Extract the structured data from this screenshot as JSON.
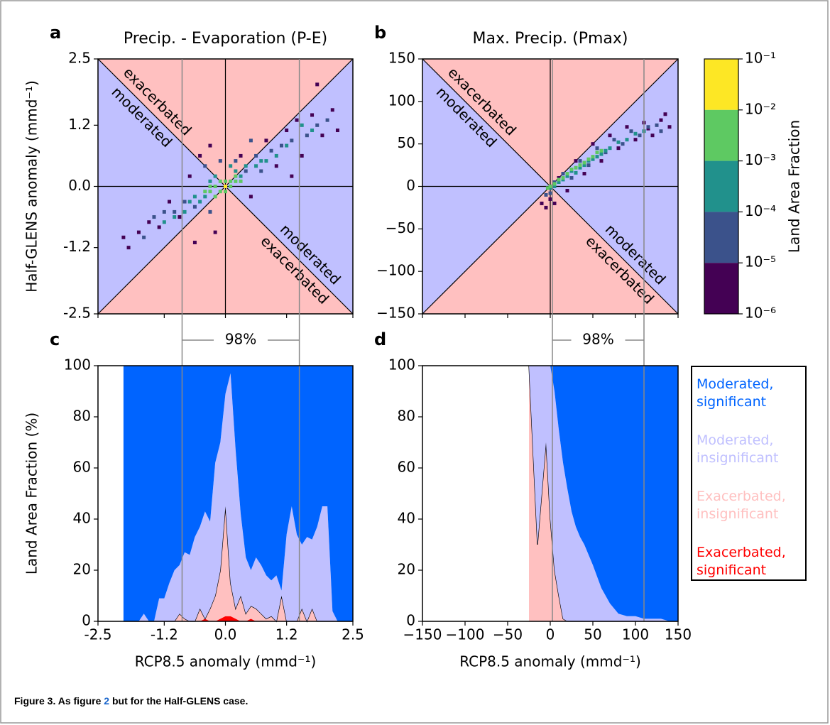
{
  "chart_data": [
    {
      "type": "scatter",
      "panel_label": "a",
      "title": "Precip. - Evaporation (P-E)",
      "ylabel": "Half-GLENS anomaly (mmd⁻¹)",
      "xlim": [
        -2.5,
        2.5
      ],
      "ylim": [
        -2.5,
        2.5
      ],
      "xticks": [
        -2.5,
        -1.2,
        0,
        1.2,
        2.5
      ],
      "xtick_labels": false,
      "yticks": [
        2.5,
        1.2,
        {
          "value": 0,
          "label": "0.0"
        },
        -1.2,
        -2.5
      ],
      "region_labels": [
        "exacerbated",
        "moderated",
        "moderated",
        "exacerbated"
      ],
      "series": [
        {
          "color": "#440154",
          "x": [
            -2.0,
            -1.9,
            -1.7,
            -1.5,
            -1.3,
            -1.1,
            -0.9,
            -0.7,
            -0.5,
            -0.3,
            -0.2,
            0.3,
            0.5,
            0.8,
            1.0,
            1.2,
            1.4,
            1.5,
            1.7,
            1.9,
            2.1,
            2.2,
            1.8,
            1.3,
            -0.6
          ],
          "y": [
            -1.0,
            -1.2,
            -0.9,
            -0.7,
            -0.8,
            -0.3,
            -0.6,
            0.2,
            0.6,
            0.8,
            -0.9,
            0.6,
            -0.2,
            0.9,
            0.4,
            1.1,
            1.3,
            0.6,
            1.4,
            1.0,
            1.5,
            1.1,
            2.0,
            0.2,
            -1.1
          ]
        },
        {
          "color": "#3b528b",
          "x": [
            -1.6,
            -1.4,
            -1.2,
            -1.0,
            -0.8,
            -0.6,
            -0.4,
            -0.3,
            0.2,
            0.4,
            0.6,
            0.7,
            0.9,
            1.1,
            1.3,
            1.6,
            1.8,
            2.0,
            -0.1,
            0.5
          ],
          "y": [
            -1.0,
            -0.6,
            -0.5,
            -0.5,
            -0.3,
            -0.4,
            0.4,
            -0.5,
            0.5,
            0.3,
            0.6,
            0.3,
            0.7,
            0.8,
            0.9,
            1.0,
            1.2,
            1.3,
            0.5,
            0.9
          ]
        },
        {
          "color": "#21918c",
          "x": [
            -1.2,
            -1.0,
            -0.8,
            -0.7,
            -0.5,
            -0.4,
            -0.3,
            -0.2,
            0.2,
            0.3,
            0.4,
            0.6,
            0.8,
            1.0,
            1.2,
            1.5,
            1.7,
            -0.6,
            0.1,
            0.7
          ],
          "y": [
            -0.7,
            -0.6,
            -0.5,
            -0.3,
            -0.3,
            -0.2,
            0.1,
            0.2,
            0.3,
            0.2,
            0.4,
            0.4,
            0.5,
            0.6,
            0.8,
            1.2,
            1.1,
            -0.2,
            0.4,
            0.5
          ]
        },
        {
          "color": "#5ec962",
          "x": [
            -0.4,
            -0.3,
            -0.2,
            -0.1,
            -0.1,
            0.0,
            0.1,
            0.1,
            0.2,
            0.2,
            0.3,
            -0.2,
            0.0,
            -0.3
          ],
          "y": [
            -0.1,
            -0.1,
            0.0,
            -0.1,
            0.1,
            0.1,
            0.1,
            0.0,
            0.1,
            0.2,
            0.1,
            -0.2,
            -0.1,
            0.0
          ]
        },
        {
          "color": "#fde725",
          "x": [
            0.0
          ],
          "y": [
            0.0
          ]
        }
      ]
    },
    {
      "type": "scatter",
      "panel_label": "b",
      "title": "Max. Precip. (Pmax)",
      "xlim": [
        -150,
        150
      ],
      "ylim": [
        -150,
        150
      ],
      "xticks": [
        -150,
        -100,
        -50,
        0,
        50,
        100,
        150
      ],
      "xtick_labels": false,
      "yticks": [
        150,
        100,
        50,
        0,
        {
          "value": -50,
          "label": "−50"
        },
        {
          "value": -100,
          "label": "−100"
        },
        {
          "value": -150,
          "label": "−150"
        }
      ],
      "region_labels": [
        "exacerbated",
        "moderated",
        "moderated",
        "exacerbated"
      ],
      "series": [
        {
          "color": "#440154",
          "x": [
            -10,
            -5,
            0,
            5,
            10,
            20,
            30,
            40,
            50,
            60,
            70,
            80,
            90,
            100,
            110,
            120,
            130,
            140,
            135,
            115
          ],
          "y": [
            -20,
            -25,
            -15,
            -20,
            10,
            -5,
            30,
            15,
            50,
            30,
            60,
            45,
            70,
            55,
            75,
            60,
            78,
            70,
            85,
            68
          ]
        },
        {
          "color": "#3b528b",
          "x": [
            -5,
            0,
            5,
            15,
            25,
            35,
            45,
            55,
            65,
            75,
            85,
            95,
            105,
            115,
            125,
            130
          ],
          "y": [
            -10,
            -8,
            5,
            15,
            10,
            30,
            25,
            45,
            40,
            55,
            50,
            65,
            60,
            70,
            72,
            65
          ]
        },
        {
          "color": "#21918c",
          "x": [
            0,
            5,
            10,
            15,
            20,
            25,
            30,
            35,
            40,
            45,
            50,
            55,
            60,
            65,
            70,
            80,
            90,
            100,
            110
          ],
          "y": [
            -2,
            0,
            5,
            8,
            12,
            18,
            16,
            22,
            25,
            30,
            32,
            35,
            38,
            42,
            45,
            52,
            55,
            62,
            65
          ]
        },
        {
          "color": "#5ec962",
          "x": [
            5,
            10,
            15,
            20,
            25,
            30,
            35,
            40,
            45,
            50,
            0,
            -3,
            55,
            60
          ],
          "y": [
            3,
            8,
            10,
            15,
            20,
            22,
            25,
            28,
            32,
            35,
            0,
            -2,
            40,
            42
          ]
        }
      ],
      "colorbar": {
        "label": "Land Area Fraction",
        "scale": "log",
        "lim": [
          1e-06,
          0.1
        ],
        "ticks": [
          {
            "value": 0.1,
            "label": "10⁻¹"
          },
          {
            "value": 0.01,
            "label": "10⁻²"
          },
          {
            "value": 0.001,
            "label": "10⁻³"
          },
          {
            "value": 0.0001,
            "label": "10⁻⁴"
          },
          {
            "value": 1e-05,
            "label": "10⁻⁵"
          },
          {
            "value": 1e-06,
            "label": "10⁻⁶"
          }
        ],
        "colors": [
          "#fde725",
          "#5ec962",
          "#21918c",
          "#3b528b",
          "#440154"
        ]
      }
    },
    {
      "type": "area",
      "panel_label": "c",
      "ylabel": "Land Area Fraction (%)",
      "xlabel": "RCP8.5 anomaly (mmd⁻¹)",
      "xlim": [
        -2.5,
        2.5
      ],
      "ylim": [
        0,
        100
      ],
      "xticks": [
        -2.5,
        -1.2,
        {
          "value": 0,
          "label": "0.0"
        },
        1.2,
        2.5
      ],
      "yticks": [
        0,
        20,
        40,
        60,
        80,
        100
      ],
      "percentile_x": [
        -0.85,
        1.45
      ],
      "percentile_label": "98%",
      "x": [
        -2.0,
        -1.9,
        -1.8,
        -1.7,
        -1.6,
        -1.5,
        -1.4,
        -1.3,
        -1.2,
        -1.1,
        -1.0,
        -0.9,
        -0.8,
        -0.7,
        -0.6,
        -0.5,
        -0.4,
        -0.3,
        -0.2,
        -0.1,
        0.0,
        0.1,
        0.2,
        0.3,
        0.4,
        0.5,
        0.6,
        0.7,
        0.8,
        0.9,
        1.0,
        1.1,
        1.2,
        1.3,
        1.4,
        1.5,
        1.6,
        1.7,
        1.8,
        1.9,
        2.0,
        2.1,
        2.2,
        2.3,
        2.4,
        2.5
      ],
      "series": [
        {
          "color": "#0064ff",
          "values": [
            100,
            100,
            100,
            100,
            97,
            100,
            100,
            91,
            91,
            85,
            80,
            78,
            73,
            74,
            67,
            63,
            57,
            61,
            38,
            30,
            11,
            3,
            33,
            58,
            75,
            80,
            75,
            78,
            82,
            84,
            82,
            88,
            66,
            55,
            66,
            70,
            67,
            68,
            63,
            55,
            55,
            96,
            100,
            100,
            100,
            100
          ]
        },
        {
          "color": "#c0c0ff",
          "values": [
            0,
            0,
            0,
            0,
            3,
            0,
            0,
            9,
            9,
            15,
            20,
            19,
            26,
            26,
            33,
            32,
            42,
            34,
            52,
            50,
            44,
            82,
            62,
            32,
            22,
            14,
            20,
            19,
            17,
            14,
            18,
            2,
            34,
            45,
            34,
            25,
            33,
            27,
            37,
            45,
            45,
            4,
            0,
            0,
            0,
            0
          ]
        },
        {
          "color": "#ffc0c0",
          "values": [
            0,
            0,
            0,
            0,
            0,
            0,
            0,
            0,
            0,
            0,
            0,
            3,
            1,
            0,
            0,
            5,
            0,
            5,
            10,
            19,
            43,
            13,
            4,
            10,
            3,
            5,
            5,
            3,
            1,
            2,
            0,
            10,
            0,
            0,
            0,
            5,
            0,
            5,
            0,
            0,
            0,
            0,
            0,
            0,
            0,
            0
          ]
        },
        {
          "color": "#ff0000",
          "values": [
            0,
            0,
            0,
            0,
            0,
            0,
            0,
            0,
            0,
            0,
            0,
            0,
            0,
            0,
            0,
            0,
            1,
            0,
            0,
            1,
            2,
            2,
            1,
            0,
            0,
            1,
            0,
            0,
            0,
            0,
            0,
            0,
            0,
            0,
            0,
            0,
            0,
            0,
            0,
            0,
            0,
            0,
            0,
            0,
            0,
            0
          ]
        }
      ]
    },
    {
      "type": "area",
      "panel_label": "d",
      "xlabel": "RCP8.5 anomaly (mmd⁻¹)",
      "xlim": [
        -150,
        150
      ],
      "ylim": [
        0,
        100
      ],
      "xticks": [
        {
          "value": -150,
          "label": "−150"
        },
        {
          "value": -100,
          "label": "−100"
        },
        {
          "value": -50,
          "label": "−50"
        },
        0,
        50,
        100,
        150
      ],
      "yticks": [
        0,
        20,
        40,
        60,
        80,
        100
      ],
      "percentile_x": [
        2.5,
        110
      ],
      "percentile_label": "98%",
      "x": [
        -25,
        -20,
        -15,
        -10,
        -5,
        0,
        5,
        10,
        15,
        20,
        25,
        30,
        35,
        40,
        50,
        60,
        70,
        80,
        90,
        100,
        110,
        120,
        130,
        140,
        150
      ],
      "series": [
        {
          "name": "Moderated, significant",
          "color": "#0064ff",
          "values": [
            0,
            0,
            0,
            0,
            0,
            0,
            10,
            25,
            38,
            48,
            57,
            63,
            67,
            70,
            78,
            87,
            93,
            97,
            98,
            98,
            99,
            99,
            99,
            100,
            100
          ]
        },
        {
          "name": "Moderated, insignificant",
          "color": "#c0c0ff",
          "values": [
            0,
            35,
            70,
            50,
            30,
            60,
            70,
            65,
            61,
            52,
            43,
            37,
            33,
            30,
            22,
            13,
            7,
            3,
            2,
            2,
            1,
            1,
            1,
            0,
            0
          ]
        },
        {
          "name": "Exacerbated, insignificant",
          "color": "#ffc0c0",
          "values": [
            100,
            65,
            30,
            50,
            70,
            40,
            20,
            10,
            1,
            0,
            0,
            0,
            0,
            0,
            0,
            0,
            0,
            0,
            0,
            0,
            0,
            0,
            0,
            0,
            0
          ]
        },
        {
          "name": "Exacerbated, significant",
          "color": "#ff0000",
          "values": [
            0,
            0,
            0,
            0,
            0,
            0,
            0,
            0,
            0,
            0,
            0,
            0,
            0,
            0,
            0,
            0,
            0,
            0,
            0,
            0,
            0,
            0,
            0,
            0,
            0
          ]
        }
      ]
    }
  ],
  "caption": {
    "label": "Figure 3.",
    "text": " As figure ",
    "ref": "2",
    "rest": " but for the Half-GLENS case."
  }
}
